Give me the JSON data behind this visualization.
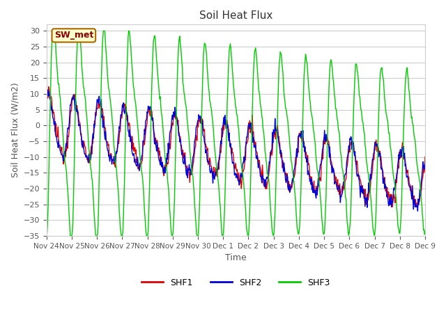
{
  "title": "Soil Heat Flux",
  "xlabel": "Time",
  "ylabel": "Soil Heat Flux (W/m2)",
  "ylim": [
    -35,
    32
  ],
  "yticks": [
    -35,
    -30,
    -25,
    -20,
    -15,
    -10,
    -5,
    0,
    5,
    10,
    15,
    20,
    25,
    30
  ],
  "site_label": "SW_met",
  "colors": {
    "SHF1": "#dd0000",
    "SHF2": "#0000dd",
    "SHF3": "#00cc00"
  },
  "fig_bg": "#ffffff",
  "plot_bg": "#ffffff",
  "grid_color": "#cccccc",
  "xtick_labels": [
    "Nov 24",
    "Nov 25",
    "Nov 26",
    "Nov 27",
    "Nov 28",
    "Nov 29",
    "Nov 30",
    "Dec 1",
    "Dec 2",
    "Dec 3",
    "Dec 4",
    "Dec 5",
    "Dec 6",
    "Dec 7",
    "Dec 8",
    "Dec 9"
  ],
  "num_points": 720,
  "seed": 12345
}
